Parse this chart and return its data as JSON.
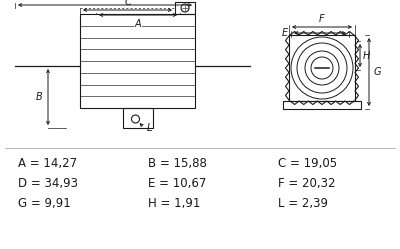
{
  "bg_color": "#ffffff",
  "line_color": "#1a1a1a",
  "text_color": "#1a1a1a",
  "dimensions_text": [
    "A = 14,27",
    "B = 15,88",
    "C = 19,05",
    "D = 34,93",
    "E = 10,67",
    "F = 20,32",
    "G = 9,91",
    "H = 1,91",
    "L = 2,39"
  ],
  "figsize": [
    4.0,
    2.49
  ],
  "dpi": 100
}
